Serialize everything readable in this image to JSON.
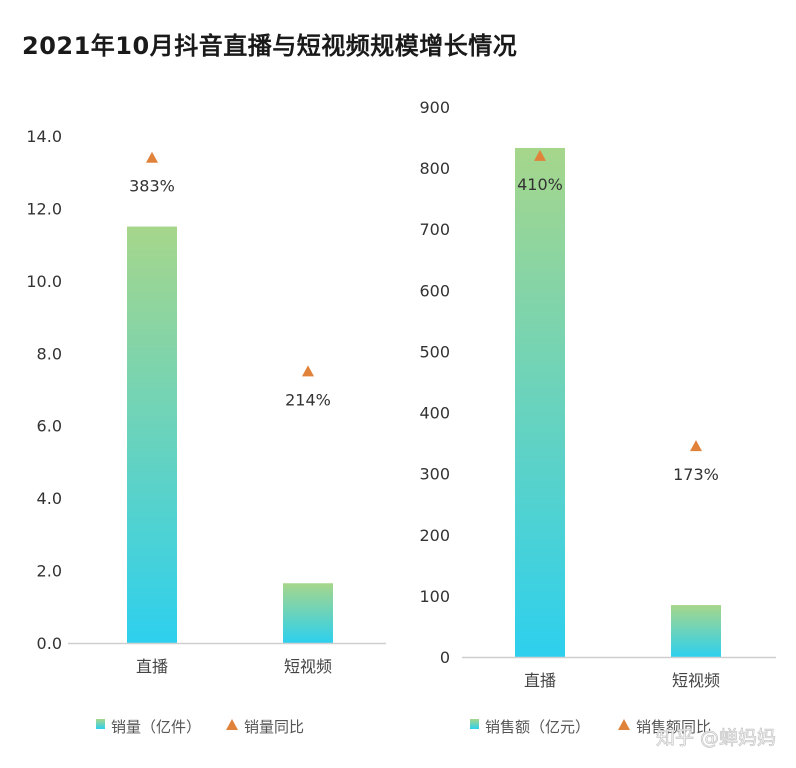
{
  "title": "2021年10月抖音直播与短视频规模增长情况",
  "watermark": "知乎 @蝉妈妈",
  "colors": {
    "bar_top": "#a6d68b",
    "bar_bottom": "#2dd0ee",
    "marker": "#e0823a",
    "axis": "#cfcfcf"
  },
  "chart_data": [
    {
      "type": "bar",
      "categories": [
        "直播",
        "短视频"
      ],
      "series": [
        {
          "name": "销量（亿件）",
          "values": [
            11.5,
            1.65
          ]
        },
        {
          "name": "销量同比",
          "marker": "triangle",
          "positions": [
            13.4,
            7.5
          ],
          "labels": [
            "383%",
            "214%"
          ]
        }
      ],
      "y_ticks": [
        "0.0",
        "2.0",
        "4.0",
        "6.0",
        "8.0",
        "10.0",
        "12.0",
        "14.0"
      ],
      "ylim": [
        0,
        14
      ],
      "legend": "bottom"
    },
    {
      "type": "bar",
      "categories": [
        "直播",
        "短视频"
      ],
      "series": [
        {
          "name": "销售额（亿元）",
          "values": [
            833,
            85
          ]
        },
        {
          "name": "销售额同比",
          "marker": "triangle",
          "positions": [
            820,
            345
          ],
          "labels": [
            "410%",
            "173%"
          ]
        }
      ],
      "y_ticks": [
        "0",
        "100",
        "200",
        "300",
        "400",
        "500",
        "600",
        "700",
        "800",
        "900"
      ],
      "ylim": [
        0,
        900
      ],
      "legend": "bottom"
    }
  ]
}
